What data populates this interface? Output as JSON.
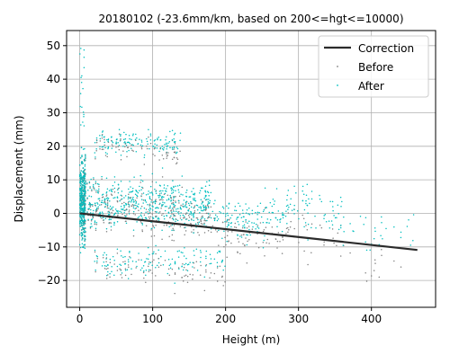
{
  "chart_data": {
    "type": "scatter",
    "title": "20180102 (-23.6mm/km, based on 200<=hgt<=10000)",
    "xlabel": "Height (m)",
    "ylabel": "Displacement (mm)",
    "xlim": [
      -18,
      488
    ],
    "ylim": [
      -28,
      54.5
    ],
    "x_ticks": [
      0,
      100,
      200,
      300,
      400
    ],
    "x_tick_labels": [
      "0",
      "100",
      "200",
      "300",
      "400"
    ],
    "y_ticks": [
      -20,
      -10,
      0,
      10,
      20,
      30,
      40,
      50
    ],
    "y_tick_labels": [
      "−20",
      "−10",
      "0",
      "10",
      "20",
      "30",
      "40",
      "50"
    ],
    "grid": true,
    "legend_position": "top-right",
    "series": [
      {
        "name": "Correction",
        "kind": "line",
        "color": "#2b2b2b",
        "x": [
          0,
          463
        ],
        "y": [
          0.0,
          -10.9
        ]
      },
      {
        "name": "Before",
        "kind": "scatter",
        "color": "#808080"
      },
      {
        "name": "After",
        "kind": "scatter",
        "color": "#00bfbf"
      }
    ],
    "clusters": [
      {
        "x_range": [
          0,
          8
        ],
        "y_mean": 4,
        "y_spread": 14,
        "density": "very high"
      },
      {
        "x_range": [
          10,
          180
        ],
        "y_mean": 3,
        "y_spread": 8,
        "density": "high"
      },
      {
        "x_range": [
          20,
          140
        ],
        "y_mean": 21,
        "y_spread": 4,
        "density": "medium"
      },
      {
        "x_range": [
          20,
          200
        ],
        "y_mean": -14,
        "y_spread": 5,
        "density": "medium"
      },
      {
        "x_range": [
          180,
          280
        ],
        "y_mean": -2,
        "y_spread": 7,
        "density": "medium"
      },
      {
        "x_range": [
          280,
          360
        ],
        "y_mean": 2,
        "y_spread": 7,
        "density": "low"
      },
      {
        "x_range": [
          360,
          460
        ],
        "y_mean": -5,
        "y_spread": 8,
        "density": "sparse"
      }
    ]
  }
}
